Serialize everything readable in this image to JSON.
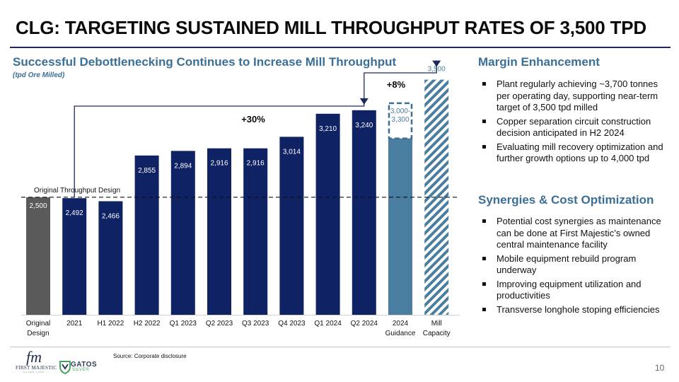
{
  "page": {
    "title": "CLG: TARGETING SUSTAINED MILL THROUGHPUT RATES OF 3,500 TPD",
    "page_number": "10",
    "source": "Source: Corporate disclosure"
  },
  "left_panel": {
    "title": "Successful Debottlenecking Continues to Increase Mill Throughput",
    "units": "(tpd Ore Milled)"
  },
  "margin": {
    "title": "Margin Enhancement",
    "bullets": [
      "Plant regularly achieving ~3,700 tonnes per operating day, supporting near-term target of 3,500 tpd milled",
      "Copper separation circuit construction decision anticipated in H2 2024",
      "Evaluating mill recovery optimization and further growth options up to 4,000 tpd"
    ]
  },
  "synergies": {
    "title": "Synergies & Cost Optimization",
    "bullets": [
      "Potential cost synergies as maintenance can be done at First Majestic’s owned central maintenance facility",
      "Mobile equipment rebuild program underway",
      "Improving equipment utilization and productivities",
      "Transverse longhole stoping efficiencies"
    ]
  },
  "logos": {
    "first_majestic": {
      "mono": "fm",
      "name": "FIRST MAJESTIC",
      "tag": "SILVER CORP"
    },
    "gatos": {
      "name": "GATOS",
      "sub": "SILVER"
    }
  },
  "chart_data": {
    "type": "bar",
    "categories": [
      [
        "Original",
        "Design"
      ],
      [
        "2021"
      ],
      [
        "H1 2022"
      ],
      [
        "H2 2022"
      ],
      [
        "Q1 2023"
      ],
      [
        "Q2 2023"
      ],
      [
        "Q3 2023"
      ],
      [
        "Q4 2023"
      ],
      [
        "Q1 2024"
      ],
      [
        "Q2 2024"
      ],
      [
        "2024",
        "Guidance"
      ],
      [
        "Mill",
        "Capacity"
      ]
    ],
    "values": [
      2500,
      2492,
      2466,
      2855,
      2894,
      2916,
      2916,
      3014,
      3210,
      3240,
      3000,
      3500
    ],
    "guidance_range": [
      3000,
      3300
    ],
    "labels": [
      "2,500",
      "2,492",
      "2,466",
      "2,855",
      "2,894",
      "2,916",
      "2,916",
      "3,014",
      "3,210",
      "3,240",
      "3,000-\n3,300",
      "3,500"
    ],
    "styles": [
      "grey",
      "navy",
      "navy",
      "navy",
      "navy",
      "navy",
      "navy",
      "navy",
      "navy",
      "navy",
      "guidance",
      "hatched"
    ],
    "reference_line": {
      "value": 2500,
      "label": "Original Throughput Design"
    },
    "annotations": [
      {
        "label": "+30%",
        "from": 1,
        "to": 9
      },
      {
        "label": "+8%",
        "from": 9,
        "to": 11
      }
    ],
    "colors": {
      "grey": "#5a5a5a",
      "navy": "#0f2263",
      "guidance": "#4a7ea0",
      "hatch": "#4a7ea0",
      "dashed_box": "#3d6f92",
      "arrow": "#1f2a5c",
      "label_light": "#ffffff",
      "label_dark": "#4a7ea0"
    },
    "ylim": [
      1500,
      3600
    ],
    "xlabel": "",
    "ylabel": "",
    "grid": false,
    "legend": "none"
  }
}
